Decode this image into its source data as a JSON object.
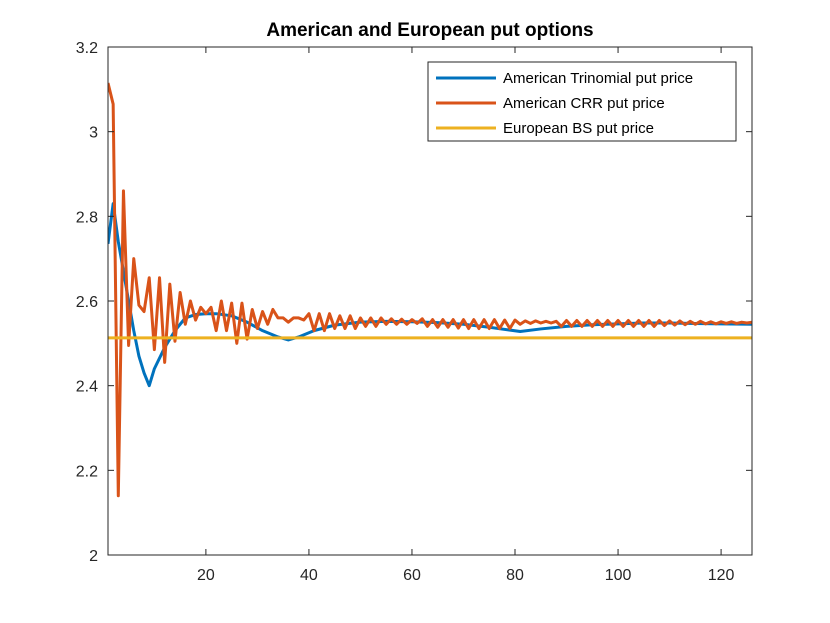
{
  "chart_data": {
    "type": "line",
    "title": "American and European put options",
    "xlabel": "",
    "ylabel": "",
    "xlim": [
      1,
      126
    ],
    "ylim": [
      2,
      3.2
    ],
    "xticks": [
      20,
      40,
      60,
      80,
      100,
      120
    ],
    "xtick_labels": [
      "20",
      "40",
      "60",
      "80",
      "100",
      "120"
    ],
    "yticks": [
      2,
      2.2,
      2.4,
      2.6,
      2.8,
      3,
      3.2
    ],
    "ytick_labels": [
      "2",
      "2.2",
      "2.4",
      "2.6",
      "2.8",
      "3",
      "3.2"
    ],
    "grid": false,
    "legend_position": "top-right",
    "series": [
      {
        "name": "American Trinomial put price",
        "color": "#0072BD",
        "points": [
          [
            1,
            2.735
          ],
          [
            2,
            2.83
          ],
          [
            3,
            2.74
          ],
          [
            4,
            2.67
          ],
          [
            5,
            2.6
          ],
          [
            6,
            2.53
          ],
          [
            7,
            2.47
          ],
          [
            8,
            2.43
          ],
          [
            9,
            2.4
          ],
          [
            10,
            2.44
          ],
          [
            12,
            2.49
          ],
          [
            14,
            2.53
          ],
          [
            16,
            2.56
          ],
          [
            18,
            2.568
          ],
          [
            20,
            2.57
          ],
          [
            22,
            2.57
          ],
          [
            25,
            2.565
          ],
          [
            28,
            2.55
          ],
          [
            31,
            2.53
          ],
          [
            34,
            2.515
          ],
          [
            36,
            2.508
          ],
          [
            38,
            2.515
          ],
          [
            41,
            2.53
          ],
          [
            45,
            2.543
          ],
          [
            50,
            2.55
          ],
          [
            55,
            2.552
          ],
          [
            60,
            2.551
          ],
          [
            65,
            2.549
          ],
          [
            70,
            2.545
          ],
          [
            75,
            2.538
          ],
          [
            81,
            2.528
          ],
          [
            85,
            2.534
          ],
          [
            90,
            2.54
          ],
          [
            95,
            2.544
          ],
          [
            100,
            2.546
          ],
          [
            105,
            2.548
          ],
          [
            110,
            2.548
          ],
          [
            115,
            2.547
          ],
          [
            120,
            2.546
          ],
          [
            126,
            2.545
          ]
        ]
      },
      {
        "name": "American CRR put price",
        "color": "#D95319",
        "points": [
          [
            1,
            3.115
          ],
          [
            2,
            3.065
          ],
          [
            3,
            2.14
          ],
          [
            4,
            2.86
          ],
          [
            5,
            2.495
          ],
          [
            6,
            2.7
          ],
          [
            7,
            2.59
          ],
          [
            8,
            2.575
          ],
          [
            9,
            2.655
          ],
          [
            10,
            2.485
          ],
          [
            11,
            2.655
          ],
          [
            12,
            2.455
          ],
          [
            13,
            2.64
          ],
          [
            14,
            2.505
          ],
          [
            15,
            2.62
          ],
          [
            16,
            2.545
          ],
          [
            17,
            2.6
          ],
          [
            18,
            2.555
          ],
          [
            19,
            2.585
          ],
          [
            20,
            2.57
          ],
          [
            21,
            2.585
          ],
          [
            22,
            2.53
          ],
          [
            23,
            2.6
          ],
          [
            24,
            2.53
          ],
          [
            25,
            2.595
          ],
          [
            26,
            2.5
          ],
          [
            27,
            2.595
          ],
          [
            28,
            2.51
          ],
          [
            29,
            2.58
          ],
          [
            30,
            2.535
          ],
          [
            31,
            2.575
          ],
          [
            32,
            2.545
          ],
          [
            33,
            2.58
          ],
          [
            34,
            2.56
          ],
          [
            35,
            2.56
          ],
          [
            36,
            2.55
          ],
          [
            37,
            2.56
          ],
          [
            38,
            2.56
          ],
          [
            39,
            2.555
          ],
          [
            40,
            2.57
          ],
          [
            41,
            2.53
          ],
          [
            42,
            2.57
          ],
          [
            43,
            2.53
          ],
          [
            44,
            2.57
          ],
          [
            45,
            2.535
          ],
          [
            46,
            2.565
          ],
          [
            47,
            2.535
          ],
          [
            48,
            2.565
          ],
          [
            49,
            2.535
          ],
          [
            50,
            2.56
          ],
          [
            51,
            2.54
          ],
          [
            52,
            2.56
          ],
          [
            53,
            2.54
          ],
          [
            54,
            2.56
          ],
          [
            55,
            2.545
          ],
          [
            56,
            2.558
          ],
          [
            57,
            2.545
          ],
          [
            58,
            2.557
          ],
          [
            59,
            2.545
          ],
          [
            60,
            2.556
          ],
          [
            61,
            2.547
          ],
          [
            62,
            2.558
          ],
          [
            63,
            2.54
          ],
          [
            64,
            2.556
          ],
          [
            65,
            2.538
          ],
          [
            66,
            2.556
          ],
          [
            67,
            2.538
          ],
          [
            68,
            2.556
          ],
          [
            69,
            2.536
          ],
          [
            70,
            2.556
          ],
          [
            71,
            2.535
          ],
          [
            72,
            2.556
          ],
          [
            73,
            2.535
          ],
          [
            74,
            2.556
          ],
          [
            75,
            2.535
          ],
          [
            76,
            2.556
          ],
          [
            77,
            2.535
          ],
          [
            78,
            2.555
          ],
          [
            79,
            2.535
          ],
          [
            80,
            2.555
          ],
          [
            81,
            2.545
          ],
          [
            82,
            2.553
          ],
          [
            83,
            2.547
          ],
          [
            84,
            2.553
          ],
          [
            85,
            2.548
          ],
          [
            86,
            2.552
          ],
          [
            87,
            2.548
          ],
          [
            88,
            2.552
          ],
          [
            89,
            2.54
          ],
          [
            90,
            2.554
          ],
          [
            91,
            2.54
          ],
          [
            92,
            2.554
          ],
          [
            93,
            2.54
          ],
          [
            94,
            2.554
          ],
          [
            95,
            2.54
          ],
          [
            96,
            2.554
          ],
          [
            97,
            2.54
          ],
          [
            98,
            2.554
          ],
          [
            99,
            2.54
          ],
          [
            100,
            2.554
          ],
          [
            101,
            2.54
          ],
          [
            102,
            2.554
          ],
          [
            103,
            2.54
          ],
          [
            104,
            2.554
          ],
          [
            105,
            2.54
          ],
          [
            106,
            2.554
          ],
          [
            107,
            2.54
          ],
          [
            108,
            2.554
          ],
          [
            109,
            2.542
          ],
          [
            110,
            2.553
          ],
          [
            111,
            2.543
          ],
          [
            112,
            2.553
          ],
          [
            113,
            2.544
          ],
          [
            114,
            2.552
          ],
          [
            115,
            2.545
          ],
          [
            116,
            2.552
          ],
          [
            117,
            2.546
          ],
          [
            118,
            2.551
          ],
          [
            119,
            2.546
          ],
          [
            120,
            2.551
          ],
          [
            121,
            2.547
          ],
          [
            122,
            2.551
          ],
          [
            123,
            2.547
          ],
          [
            124,
            2.55
          ],
          [
            125,
            2.548
          ],
          [
            126,
            2.55
          ]
        ]
      },
      {
        "name": "European BS put price",
        "color": "#EDB120",
        "points": [
          [
            1,
            2.513
          ],
          [
            126,
            2.513
          ]
        ]
      }
    ]
  }
}
